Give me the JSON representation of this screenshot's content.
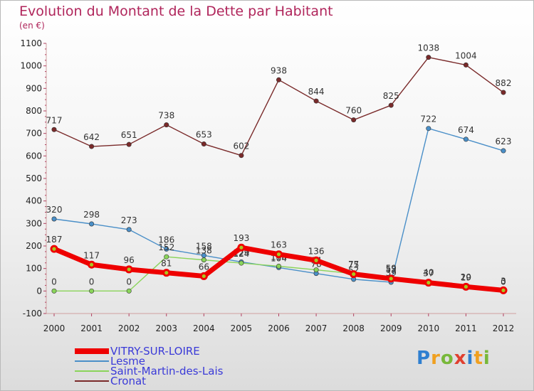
{
  "title": "Evolution du Montant de la Dette par Habitant",
  "unit": "(en €)",
  "logo": {
    "chars": [
      "P",
      "r",
      "o",
      "x",
      "i",
      "t",
      "i"
    ],
    "colors": [
      "#2f7fd0",
      "#f0a020",
      "#78b83a",
      "#e04030",
      "#2f7fd0",
      "#f0a020",
      "#78b83a"
    ]
  },
  "chart_data": {
    "type": "line",
    "x": [
      "2000",
      "2001",
      "2002",
      "2003",
      "2004",
      "2005",
      "2006",
      "2007",
      "2008",
      "2009",
      "2010",
      "2011",
      "2012"
    ],
    "ylim": [
      -100,
      1100
    ],
    "yticks": [
      "-100",
      "0",
      "100",
      "200",
      "300",
      "400",
      "500",
      "600",
      "700",
      "800",
      "900",
      "1000",
      "1100"
    ],
    "grid": false,
    "legend_position": "bottom-left",
    "series": [
      {
        "name": "Cronat",
        "color": "#7a2a2a",
        "values": [
          717,
          642,
          651,
          738,
          653,
          602,
          938,
          844,
          760,
          825,
          1038,
          1004,
          882
        ],
        "labels": [
          "717",
          "642",
          "651",
          "738",
          "653",
          "602",
          "938",
          "844",
          "760",
          "825",
          "1038",
          "1004",
          "882"
        ]
      },
      {
        "name": "Lesme",
        "color": "#4a8fc8",
        "values": [
          320,
          298,
          273,
          186,
          158,
          129,
          104,
          78,
          52,
          39,
          722,
          674,
          623
        ],
        "labels": [
          "320",
          "298",
          "273",
          "186",
          "158",
          "129",
          "104",
          "78",
          "52",
          "39",
          "722",
          "674",
          "623"
        ]
      },
      {
        "name": "Saint-Martin-des-Lais",
        "color": "#8ad45a",
        "values": [
          0,
          0,
          0,
          152,
          138,
          124,
          110,
          94,
          77,
          59,
          40,
          20,
          0
        ],
        "labels": [
          "0",
          "0",
          "0",
          "152",
          "138",
          "124",
          "110",
          "94",
          "77",
          "59",
          "40",
          "20",
          "0"
        ]
      },
      {
        "name": "VITRY-SUR-LOIRE",
        "color": "#ee0000",
        "values": [
          187,
          117,
          96,
          81,
          66,
          193,
          163,
          136,
          75,
          55,
          37,
          19,
          3
        ],
        "labels": [
          "187",
          "117",
          "96",
          "81",
          "66",
          "193",
          "163",
          "136",
          "75",
          "55",
          "37",
          "19",
          "3"
        ]
      }
    ]
  },
  "legend": [
    {
      "label": "VITRY-SUR-LOIRE",
      "color": "#ee0000"
    },
    {
      "label": "Lesme",
      "color": "#4a8fc8"
    },
    {
      "label": "Saint-Martin-des-Lais",
      "color": "#8ad45a"
    },
    {
      "label": "Cronat",
      "color": "#7a2a2a"
    }
  ]
}
